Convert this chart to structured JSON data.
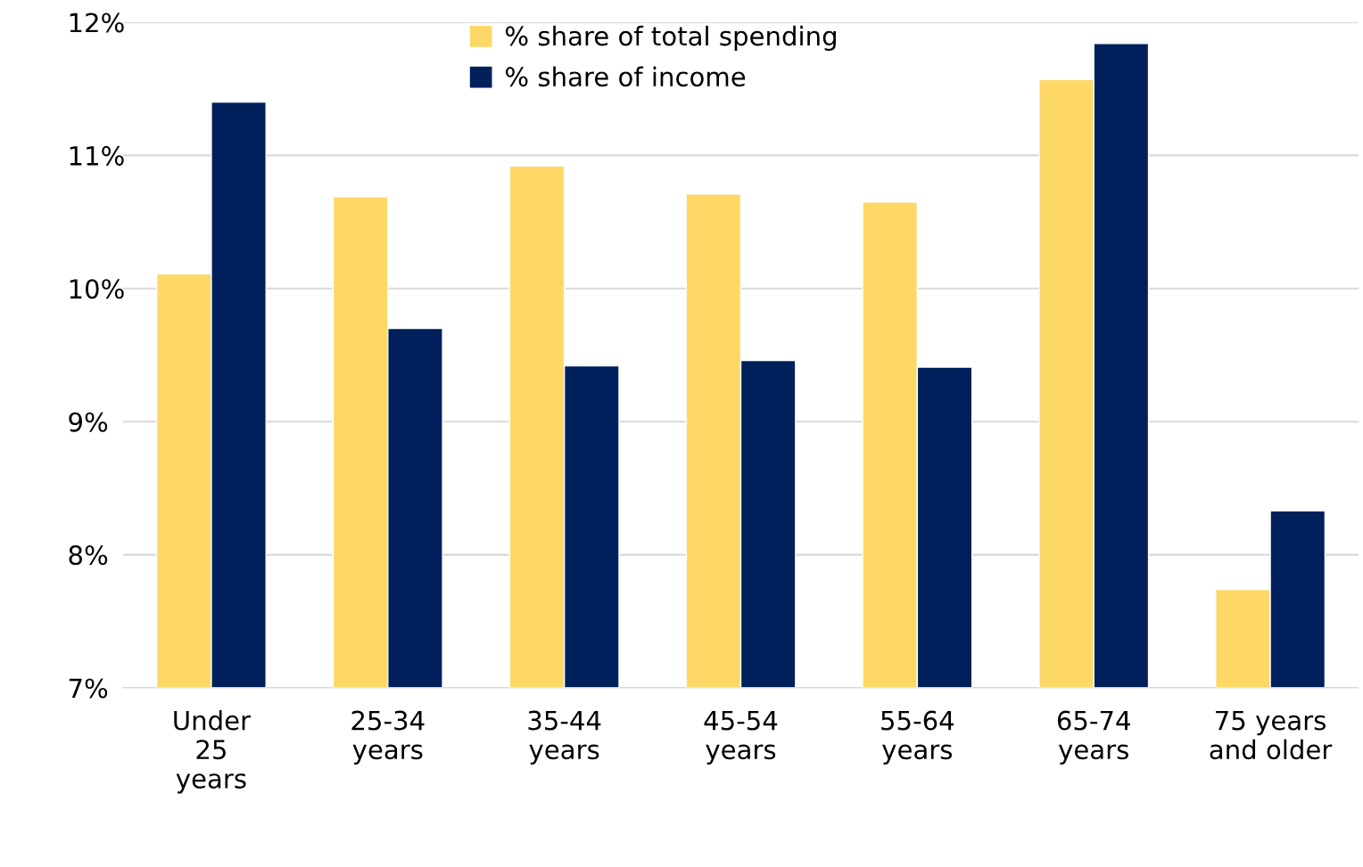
{
  "chart_data": {
    "type": "bar",
    "categories": [
      "Under\n25\nyears",
      "25-34\nyears",
      "35-44\nyears",
      "45-54\nyears",
      "55-64\nyears",
      "65-74\nyears",
      "75 years\nand older"
    ],
    "series": [
      {
        "name": "% share of total spending",
        "color": "#fdd866",
        "values": [
          10.11,
          10.69,
          10.92,
          10.71,
          10.65,
          11.57,
          7.74
        ]
      },
      {
        "name": "% share of income",
        "color": "#00205b",
        "values": [
          11.4,
          9.7,
          9.42,
          9.46,
          9.41,
          11.84,
          8.33
        ]
      }
    ],
    "ylim": [
      7,
      12
    ],
    "yticks": [
      {
        "value": 7,
        "label": "7%"
      },
      {
        "value": 8,
        "label": "8%"
      },
      {
        "value": 9,
        "label": "9%"
      },
      {
        "value": 10,
        "label": "10%"
      },
      {
        "value": 11,
        "label": "11%"
      },
      {
        "value": 12,
        "label": "12%"
      }
    ],
    "grid": "y",
    "legend": "top"
  }
}
